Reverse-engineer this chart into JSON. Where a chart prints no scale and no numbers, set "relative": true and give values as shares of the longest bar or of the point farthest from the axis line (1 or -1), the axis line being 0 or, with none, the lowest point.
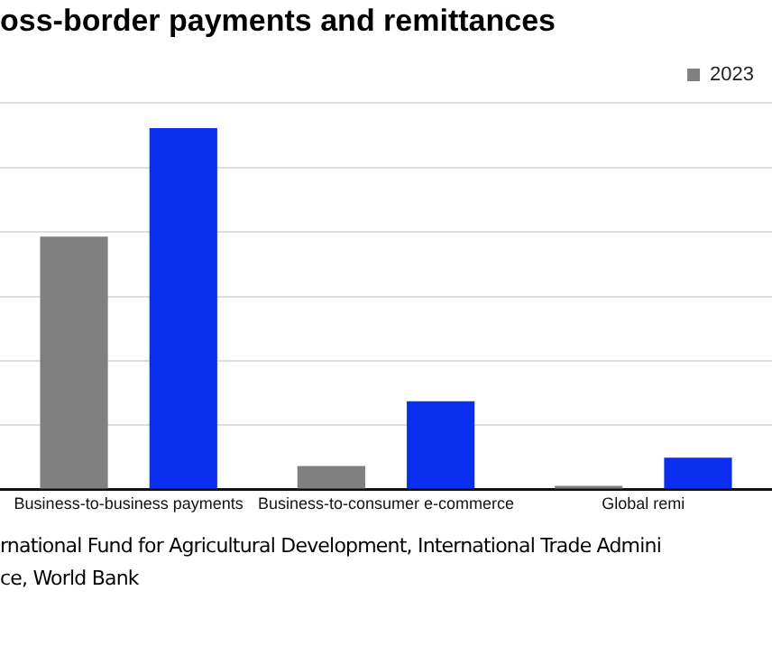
{
  "chart_data": {
    "type": "bar",
    "title": "oss-border payments and remittances",
    "categories": [
      "Business-to-business payments",
      "Business-to-consumer e-commerce",
      "Global remi"
    ],
    "series": [
      {
        "name": "2023",
        "color": "#808080",
        "values": [
          0.7,
          0.065,
          0.01
        ]
      },
      {
        "color": "#0a2ff0",
        "values": [
          1,
          0.244,
          0.088
        ]
      }
    ],
    "relative": true,
    "grid": "y",
    "legend": "top right",
    "annotations": [
      "rnational Fund for Agricultural Development, International Trade Admini",
      "ce, World Bank"
    ]
  }
}
